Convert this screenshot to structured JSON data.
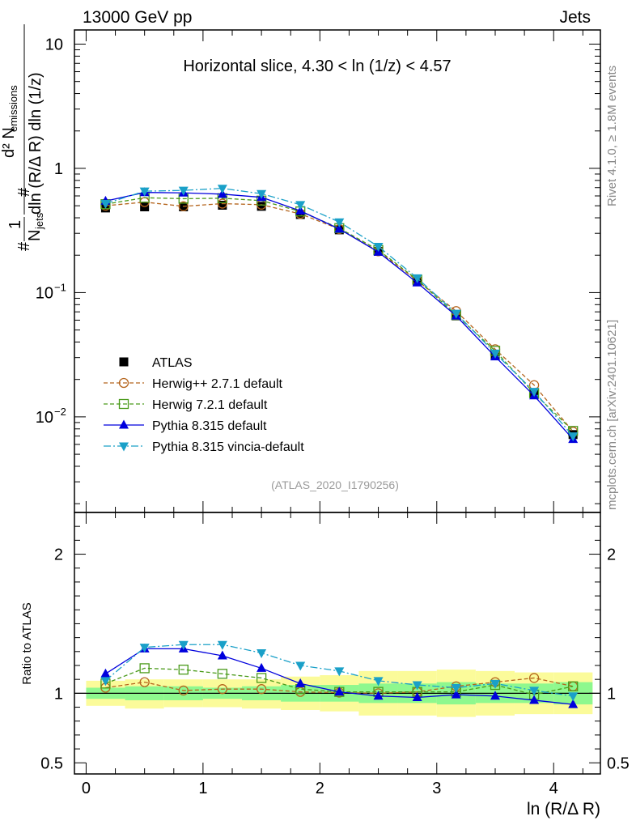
{
  "header": {
    "left": "13000 GeV pp",
    "right": "Jets"
  },
  "side_labels": {
    "rivet": "Rivet 4.1.0, ≥ 1.8M events",
    "mcplots": "mcplots.cern.ch [arXiv:2401.10621]"
  },
  "ref_note": "(ATLAS_2020_I1790256)",
  "colors": {
    "atlas": "#000000",
    "herwig_pp": "#b5651d",
    "herwig7": "#4a9a1a",
    "pythia": "#0000dd",
    "vincia": "#1aa0c8",
    "band_outer": "#fbfb9a",
    "band_inner": "#8ef88e"
  },
  "chart_data": [
    {
      "type": "line",
      "title": "Horizontal slice, 4.30 < ln (1/z) < 4.57",
      "xlabel": "ln (R/Δ R)",
      "ylabel": "1/N_jets dN_emissions / dln (R/Δ R) dln (1/z)",
      "ylabel_parts": {
        "num_prefix": "d² N",
        "num_sub": "emissions",
        "denom_a": "dln (R/Δ R) dln (1/z)",
        "n_prefix": "N",
        "n_sub": "jets",
        "one": "1",
        "hash": "#"
      },
      "yscale": "log",
      "ylim": [
        0.0017,
        13
      ],
      "xlim": [
        -0.1,
        4.4
      ],
      "yticks": [
        {
          "v": 0.01,
          "base": "10",
          "exp": "−2"
        },
        {
          "v": 0.1,
          "base": "10",
          "exp": "−1"
        },
        {
          "v": 1,
          "base": "1",
          "exp": ""
        },
        {
          "v": 10,
          "base": "10",
          "exp": ""
        }
      ],
      "x": [
        0.166,
        0.5,
        0.833,
        1.166,
        1.5,
        1.833,
        2.166,
        2.5,
        2.833,
        3.166,
        3.5,
        3.833,
        4.166
      ],
      "legend": [
        "ATLAS",
        "Herwig++ 2.7.1 default",
        "Herwig 7.2.1 default",
        "Pythia 8.315 default",
        "Pythia 8.315 vincia-default"
      ],
      "series": [
        {
          "name": "ATLAS",
          "key": "atlas",
          "marker": "square",
          "line": "none",
          "values": [
            0.48,
            0.49,
            0.49,
            0.505,
            0.495,
            0.425,
            0.32,
            0.215,
            0.123,
            0.065,
            0.031,
            0.0155,
            0.0072
          ]
        },
        {
          "name": "Herwig++ 2.7.1 default",
          "key": "herwig_pp",
          "marker": "circle",
          "line": "dashed",
          "values": [
            0.5,
            0.535,
            0.495,
            0.52,
            0.51,
            0.43,
            0.325,
            0.215,
            0.125,
            0.071,
            0.035,
            0.018,
            0.0076
          ]
        },
        {
          "name": "Herwig 7.2.1 default",
          "key": "herwig7",
          "marker": "opensquare",
          "line": "dashed",
          "values": [
            0.515,
            0.58,
            0.57,
            0.575,
            0.55,
            0.45,
            0.33,
            0.22,
            0.127,
            0.066,
            0.034,
            0.0155,
            0.0077
          ]
        },
        {
          "name": "Pythia 8.315 default",
          "key": "pythia",
          "marker": "triangle-up",
          "line": "solid",
          "values": [
            0.545,
            0.64,
            0.635,
            0.62,
            0.585,
            0.455,
            0.325,
            0.212,
            0.12,
            0.065,
            0.0305,
            0.0148,
            0.0066
          ]
        },
        {
          "name": "Pythia 8.315 vincia-default",
          "key": "vincia",
          "marker": "triangle-down",
          "line": "dashdot",
          "values": [
            0.52,
            0.655,
            0.665,
            0.69,
            0.625,
            0.51,
            0.37,
            0.235,
            0.131,
            0.068,
            0.0325,
            0.016,
            0.007
          ]
        }
      ]
    },
    {
      "type": "line",
      "ylabel": "Ratio to ATLAS",
      "xlabel": "ln (R/Δ R)",
      "ylim": [
        0.42,
        2.3
      ],
      "xlim": [
        -0.1,
        4.4
      ],
      "yticks": [
        0.5,
        1,
        2
      ],
      "ytick_labels": [
        "0.5",
        "1",
        "2"
      ],
      "xticks": [
        0,
        1,
        2,
        3,
        4
      ],
      "xtick_labels": [
        "0",
        "1",
        "2",
        "3",
        "4"
      ],
      "x": [
        0.166,
        0.5,
        0.833,
        1.166,
        1.5,
        1.833,
        2.166,
        2.5,
        2.833,
        3.166,
        3.5,
        3.833,
        4.166
      ],
      "bins": [
        0,
        0.333,
        0.666,
        1.0,
        1.333,
        1.666,
        2.0,
        2.333,
        2.666,
        3.0,
        3.333,
        3.666,
        4.0,
        4.333
      ],
      "band_outer": [
        [
          0.91,
          1.09
        ],
        [
          0.89,
          1.1
        ],
        [
          0.9,
          1.1
        ],
        [
          0.9,
          1.1
        ],
        [
          0.89,
          1.1
        ],
        [
          0.88,
          1.12
        ],
        [
          0.87,
          1.13
        ],
        [
          0.84,
          1.16
        ],
        [
          0.84,
          1.16
        ],
        [
          0.83,
          1.17
        ],
        [
          0.84,
          1.16
        ],
        [
          0.85,
          1.15
        ],
        [
          0.85,
          1.15
        ]
      ],
      "band_inner": [
        [
          0.96,
          1.04
        ],
        [
          0.95,
          1.05
        ],
        [
          0.95,
          1.05
        ],
        [
          0.96,
          1.04
        ],
        [
          0.95,
          1.05
        ],
        [
          0.94,
          1.06
        ],
        [
          0.94,
          1.06
        ],
        [
          0.93,
          1.07
        ],
        [
          0.93,
          1.07
        ],
        [
          0.92,
          1.08
        ],
        [
          0.93,
          1.07
        ],
        [
          0.93,
          1.07
        ],
        [
          0.92,
          1.08
        ]
      ],
      "series": [
        {
          "name": "Herwig++ 2.7.1 default",
          "key": "herwig_pp",
          "marker": "circle",
          "line": "dashed",
          "values": [
            1.04,
            1.08,
            1.02,
            1.03,
            1.03,
            1.01,
            1.005,
            1.0,
            1.01,
            1.05,
            1.08,
            1.11,
            1.05
          ]
        },
        {
          "name": "Herwig 7.2.1 default",
          "key": "herwig7",
          "marker": "opensquare",
          "line": "dashed",
          "values": [
            1.07,
            1.18,
            1.17,
            1.14,
            1.11,
            1.03,
            1.01,
            1.01,
            1.01,
            1.01,
            1.06,
            0.99,
            1.05
          ]
        },
        {
          "name": "Pythia 8.315 default",
          "key": "pythia",
          "marker": "triangle-up",
          "line": "solid",
          "values": [
            1.14,
            1.32,
            1.32,
            1.27,
            1.18,
            1.07,
            1.01,
            0.98,
            0.97,
            0.99,
            0.98,
            0.95,
            0.92
          ]
        },
        {
          "name": "Pythia 8.315 vincia-default",
          "key": "vincia",
          "marker": "triangle-down",
          "line": "dashdot",
          "values": [
            1.09,
            1.33,
            1.35,
            1.35,
            1.29,
            1.2,
            1.16,
            1.09,
            1.06,
            1.04,
            1.07,
            1.02,
            0.98
          ]
        }
      ]
    }
  ]
}
